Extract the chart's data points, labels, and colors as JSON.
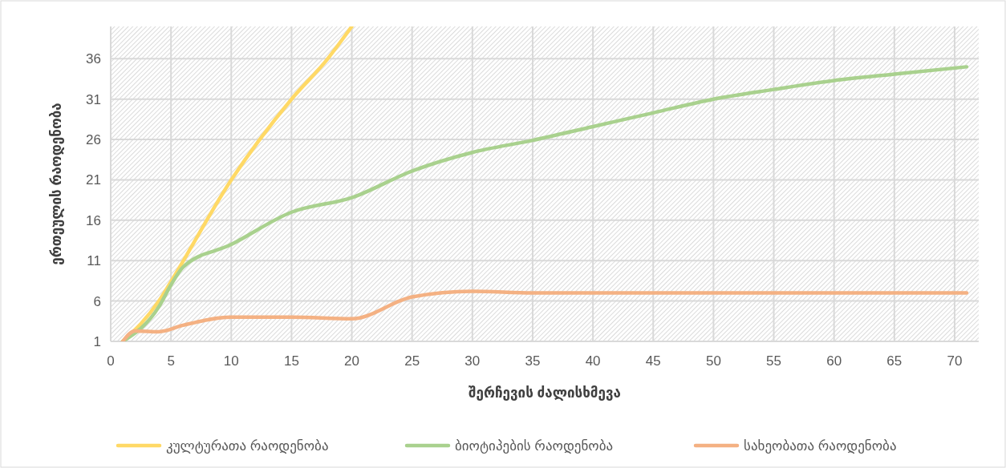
{
  "chart_data": {
    "type": "line",
    "xlabel": "შერჩევის ძალისხმევა",
    "ylabel": "ერთეულის რაოდენობა",
    "xlim": [
      0,
      72
    ],
    "xticks": [
      0,
      5,
      10,
      15,
      20,
      25,
      30,
      35,
      40,
      45,
      50,
      55,
      60,
      65,
      70
    ],
    "ylim": [
      1,
      40
    ],
    "yticks": [
      1,
      6,
      11,
      16,
      21,
      26,
      31,
      36
    ],
    "grid": true,
    "legend": "bottom",
    "marker": "none",
    "line_style": "solid",
    "series": [
      {
        "name": "კულტურათა რაოდენობა",
        "color": "#ffd966",
        "x": [
          1,
          4,
          5,
          10,
          15,
          18,
          20
        ],
        "values": [
          1,
          6,
          8.4,
          21,
          31,
          36,
          40
        ]
      },
      {
        "name": "ბიოტიპების რაოდენობა",
        "color": "#a9d18e",
        "x": [
          1,
          4,
          5,
          6,
          10,
          15,
          20,
          25,
          30,
          35,
          40,
          45,
          50,
          55,
          60,
          65,
          71
        ],
        "values": [
          1,
          5.3,
          8,
          10.2,
          13,
          17,
          18.8,
          22.1,
          24.4,
          25.9,
          27.6,
          29.3,
          31,
          32.2,
          33.3,
          34.1,
          35
        ]
      },
      {
        "name": "სახეობათა რაოდენობა",
        "color": "#f4b183",
        "x": [
          1,
          2,
          4,
          6,
          10,
          15,
          20,
          25,
          30,
          35,
          40,
          50,
          60,
          71
        ],
        "values": [
          1,
          2.3,
          2.2,
          3,
          4,
          4,
          3.8,
          6.5,
          7.2,
          7,
          7,
          7,
          7,
          7
        ]
      }
    ]
  }
}
